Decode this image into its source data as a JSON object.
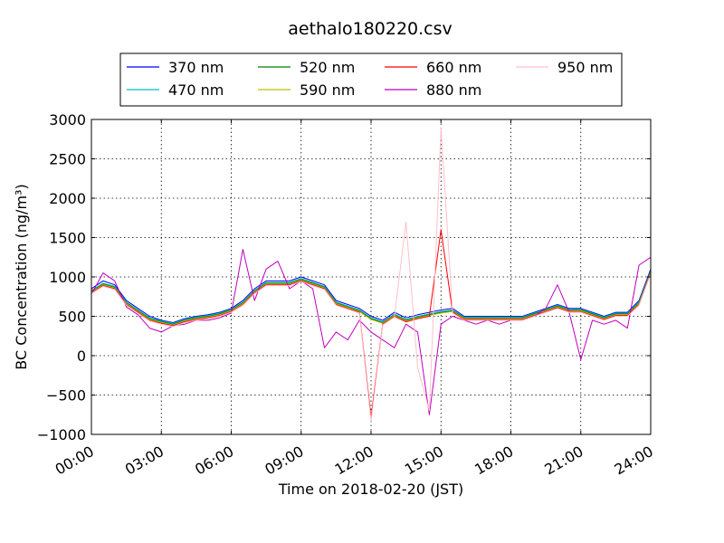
{
  "chart_data": {
    "type": "line",
    "title": "aethalo180220.csv",
    "xlabel": "Time on 2018-02-20 (JST)",
    "ylabel": "BC Concentration (ng/m³)",
    "ylim": [
      -1000,
      3000
    ],
    "yticks": [
      -1000,
      -500,
      0,
      500,
      1000,
      1500,
      2000,
      2500,
      3000
    ],
    "xlim": [
      "00:00",
      "24:00"
    ],
    "xticks": [
      "00:00",
      "03:00",
      "06:00",
      "09:00",
      "12:00",
      "15:00",
      "18:00",
      "21:00",
      "24:00"
    ],
    "grid": true,
    "legend": {
      "placement": "top-center",
      "columns": 4
    },
    "x": [
      "00:00",
      "00:30",
      "01:00",
      "01:30",
      "02:00",
      "02:30",
      "03:00",
      "03:30",
      "04:00",
      "04:30",
      "05:00",
      "05:30",
      "06:00",
      "06:30",
      "07:00",
      "07:30",
      "08:00",
      "08:30",
      "09:00",
      "09:30",
      "10:00",
      "10:30",
      "11:00",
      "11:30",
      "12:00",
      "12:30",
      "13:00",
      "13:30",
      "14:00",
      "14:30",
      "15:00",
      "15:30",
      "16:00",
      "16:30",
      "17:00",
      "17:30",
      "18:00",
      "18:30",
      "19:00",
      "19:30",
      "20:00",
      "20:30",
      "21:00",
      "21:30",
      "22:00",
      "22:30",
      "23:00",
      "23:30",
      "24:00"
    ],
    "series": [
      {
        "name": "370 nm",
        "color": "#0000ff",
        "values": [
          850,
          950,
          900,
          700,
          600,
          500,
          450,
          420,
          470,
          500,
          520,
          550,
          600,
          700,
          850,
          950,
          950,
          950,
          1000,
          950,
          900,
          700,
          650,
          600,
          500,
          450,
          550,
          480,
          520,
          550,
          580,
          600,
          500,
          500,
          500,
          500,
          500,
          500,
          550,
          600,
          650,
          600,
          600,
          550,
          500,
          550,
          550,
          700,
          1100
        ]
      },
      {
        "name": "470 nm",
        "color": "#00bfbf",
        "values": [
          830,
          920,
          880,
          680,
          580,
          480,
          440,
          410,
          460,
          490,
          510,
          540,
          590,
          680,
          830,
          930,
          930,
          930,
          980,
          930,
          880,
          680,
          630,
          580,
          480,
          430,
          530,
          460,
          500,
          530,
          560,
          580,
          490,
          490,
          490,
          490,
          490,
          490,
          540,
          590,
          640,
          590,
          590,
          540,
          490,
          540,
          540,
          680,
          1080
        ]
      },
      {
        "name": "520 nm",
        "color": "#008000",
        "values": [
          820,
          910,
          870,
          670,
          570,
          470,
          430,
          400,
          450,
          480,
          500,
          530,
          580,
          670,
          820,
          920,
          920,
          920,
          970,
          920,
          870,
          670,
          620,
          570,
          470,
          420,
          520,
          450,
          490,
          520,
          550,
          570,
          480,
          480,
          480,
          480,
          480,
          480,
          530,
          580,
          630,
          580,
          580,
          530,
          480,
          530,
          530,
          670,
          1070
        ]
      },
      {
        "name": "590 nm",
        "color": "#bfbf00",
        "values": [
          810,
          900,
          860,
          660,
          560,
          460,
          420,
          390,
          440,
          470,
          490,
          520,
          570,
          660,
          810,
          910,
          910,
          910,
          960,
          910,
          860,
          660,
          610,
          560,
          460,
          410,
          510,
          440,
          480,
          510,
          540,
          560,
          470,
          470,
          470,
          470,
          470,
          470,
          520,
          570,
          620,
          570,
          570,
          520,
          470,
          520,
          520,
          660,
          1060
        ]
      },
      {
        "name": "660 nm",
        "color": "#ff0000",
        "values": [
          800,
          890,
          850,
          650,
          550,
          450,
          410,
          380,
          430,
          460,
          480,
          510,
          560,
          650,
          800,
          900,
          900,
          900,
          950,
          900,
          850,
          650,
          600,
          550,
          -780,
          400,
          500,
          430,
          470,
          500,
          1600,
          550,
          460,
          460,
          460,
          460,
          460,
          460,
          510,
          560,
          610,
          560,
          560,
          510,
          460,
          510,
          510,
          650,
          1050
        ]
      },
      {
        "name": "880 nm",
        "color": "#bf00bf",
        "values": [
          780,
          1050,
          950,
          620,
          520,
          350,
          300,
          380,
          400,
          450,
          450,
          480,
          540,
          1350,
          700,
          1100,
          1200,
          850,
          950,
          850,
          100,
          300,
          200,
          450,
          300,
          200,
          100,
          400,
          300,
          -750,
          400,
          500,
          450,
          400,
          450,
          400,
          450,
          450,
          500,
          600,
          900,
          550,
          -50,
          450,
          400,
          450,
          350,
          1150,
          1250
        ]
      },
      {
        "name": "950 nm",
        "color": "#ffc0cb",
        "values": [
          790,
          880,
          840,
          640,
          540,
          440,
          400,
          370,
          420,
          450,
          470,
          500,
          550,
          640,
          790,
          890,
          890,
          890,
          940,
          890,
          840,
          640,
          590,
          540,
          -830,
          390,
          490,
          1700,
          -150,
          -700,
          2900,
          540,
          450,
          450,
          450,
          450,
          450,
          450,
          500,
          550,
          600,
          550,
          550,
          500,
          450,
          500,
          500,
          640,
          1040
        ]
      }
    ]
  }
}
